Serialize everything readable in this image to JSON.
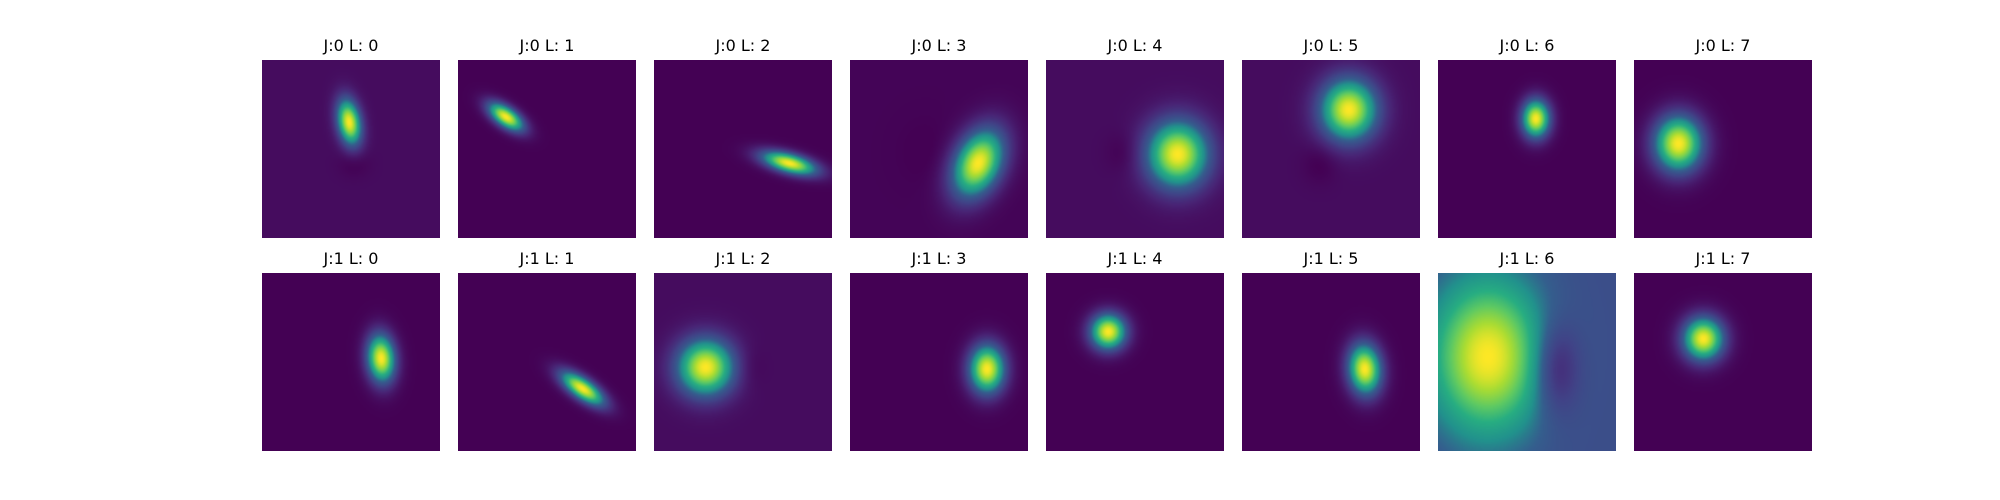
{
  "figure": {
    "colormap": "viridis",
    "colors": {
      "low": "#440154",
      "high": "#fde725",
      "background": "#ffffff"
    }
  },
  "chart_data": {
    "type": "heatmap",
    "rows": 2,
    "cols": 8,
    "colormap": "viridis",
    "panels": [
      {
        "title": "J:0 L: 0",
        "J": 0,
        "L": 0,
        "background": 0.04,
        "blobs": [
          {
            "cx": 0.49,
            "cy": 0.35,
            "sx": 0.045,
            "sy": 0.09,
            "rot": -10,
            "amp": 0.96
          },
          {
            "cx": 0.52,
            "cy": 0.58,
            "sx": 0.06,
            "sy": 0.055,
            "rot": 0,
            "amp": -0.05
          }
        ]
      },
      {
        "title": "J:0 L: 1",
        "J": 0,
        "L": 1,
        "background": 0.0,
        "blobs": [
          {
            "cx": 0.27,
            "cy": 0.32,
            "sx": 0.08,
            "sy": 0.038,
            "rot": 35,
            "amp": 1.0
          }
        ]
      },
      {
        "title": "J:0 L: 2",
        "J": 0,
        "L": 2,
        "background": 0.0,
        "blobs": [
          {
            "cx": 0.76,
            "cy": 0.58,
            "sx": 0.11,
            "sy": 0.038,
            "rot": 15,
            "amp": 1.0
          }
        ]
      },
      {
        "title": "J:0 L: 3",
        "J": 0,
        "L": 3,
        "background": 0.01,
        "blobs": [
          {
            "cx": 0.72,
            "cy": 0.58,
            "sx": 0.09,
            "sy": 0.14,
            "rot": 25,
            "amp": 0.99
          },
          {
            "cx": 0.43,
            "cy": 0.52,
            "sx": 0.1,
            "sy": 0.12,
            "rot": 0,
            "amp": -0.02
          }
        ]
      },
      {
        "title": "J:0 L: 4",
        "J": 0,
        "L": 4,
        "background": 0.04,
        "blobs": [
          {
            "cx": 0.74,
            "cy": 0.53,
            "sx": 0.12,
            "sy": 0.13,
            "rot": 0,
            "amp": 0.96
          },
          {
            "cx": 0.44,
            "cy": 0.52,
            "sx": 0.07,
            "sy": 0.08,
            "rot": 0,
            "amp": -0.05
          }
        ]
      },
      {
        "title": "J:0 L: 5",
        "J": 0,
        "L": 5,
        "background": 0.04,
        "blobs": [
          {
            "cx": 0.6,
            "cy": 0.28,
            "sx": 0.11,
            "sy": 0.12,
            "rot": 0,
            "amp": 0.96
          },
          {
            "cx": 0.44,
            "cy": 0.58,
            "sx": 0.07,
            "sy": 0.08,
            "rot": 0,
            "amp": -0.05
          }
        ]
      },
      {
        "title": "J:0 L: 6",
        "J": 0,
        "L": 6,
        "background": 0.0,
        "blobs": [
          {
            "cx": 0.55,
            "cy": 0.33,
            "sx": 0.055,
            "sy": 0.075,
            "rot": 0,
            "amp": 1.0
          }
        ]
      },
      {
        "title": "J:0 L: 7",
        "J": 0,
        "L": 7,
        "background": 0.0,
        "blobs": [
          {
            "cx": 0.25,
            "cy": 0.47,
            "sx": 0.095,
            "sy": 0.11,
            "rot": 0,
            "amp": 1.0
          }
        ]
      },
      {
        "title": "J:1 L: 0",
        "J": 1,
        "L": 0,
        "background": 0.0,
        "blobs": [
          {
            "cx": 0.67,
            "cy": 0.48,
            "sx": 0.055,
            "sy": 0.095,
            "rot": -5,
            "amp": 1.0
          }
        ]
      },
      {
        "title": "J:1 L: 1",
        "J": 1,
        "L": 1,
        "background": 0.0,
        "blobs": [
          {
            "cx": 0.7,
            "cy": 0.65,
            "sx": 0.1,
            "sy": 0.04,
            "rot": 35,
            "amp": 1.0
          }
        ]
      },
      {
        "title": "J:1 L: 2",
        "J": 1,
        "L": 2,
        "background": 0.04,
        "blobs": [
          {
            "cx": 0.29,
            "cy": 0.53,
            "sx": 0.11,
            "sy": 0.11,
            "rot": 0,
            "amp": 0.96
          },
          {
            "cx": 0.54,
            "cy": 0.53,
            "sx": 0.06,
            "sy": 0.08,
            "rot": 0,
            "amp": -0.04
          }
        ]
      },
      {
        "title": "J:1 L: 3",
        "J": 1,
        "L": 3,
        "background": 0.0,
        "blobs": [
          {
            "cx": 0.77,
            "cy": 0.54,
            "sx": 0.07,
            "sy": 0.095,
            "rot": 0,
            "amp": 1.0
          }
        ]
      },
      {
        "title": "J:1 L: 4",
        "J": 1,
        "L": 4,
        "background": 0.0,
        "blobs": [
          {
            "cx": 0.35,
            "cy": 0.33,
            "sx": 0.07,
            "sy": 0.07,
            "rot": 0,
            "amp": 1.0
          }
        ]
      },
      {
        "title": "J:1 L: 5",
        "J": 1,
        "L": 5,
        "background": 0.0,
        "blobs": [
          {
            "cx": 0.69,
            "cy": 0.54,
            "sx": 0.065,
            "sy": 0.1,
            "rot": -5,
            "amp": 1.0
          }
        ]
      },
      {
        "title": "J:1 L: 6",
        "J": 1,
        "L": 6,
        "background": 0.3,
        "blobs": [
          {
            "cx": 0.28,
            "cy": 0.47,
            "sx": 0.22,
            "sy": 0.3,
            "rot": 0,
            "amp": 0.7
          },
          {
            "cx": 0.66,
            "cy": 0.53,
            "sx": 0.09,
            "sy": 0.18,
            "rot": 0,
            "amp": -0.25
          }
        ]
      },
      {
        "title": "J:1 L: 7",
        "J": 1,
        "L": 7,
        "background": 0.0,
        "blobs": [
          {
            "cx": 0.39,
            "cy": 0.37,
            "sx": 0.08,
            "sy": 0.085,
            "rot": 0,
            "amp": 1.0
          }
        ]
      }
    ]
  }
}
